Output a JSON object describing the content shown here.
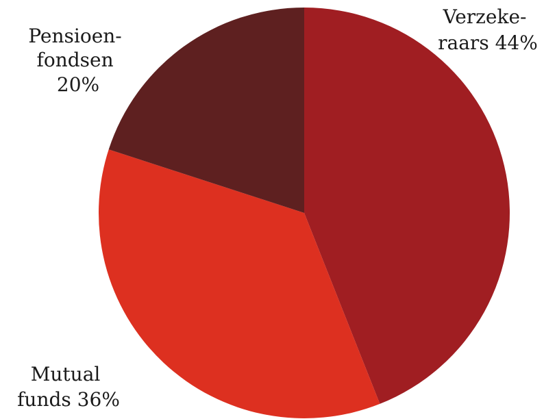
{
  "chart_data": {
    "type": "pie",
    "slices": [
      {
        "label_lines": [
          "Verzeke-",
          "raars 44%"
        ],
        "value": 44,
        "color": "#A01E22"
      },
      {
        "label_lines": [
          "Mutual",
          "funds 36%"
        ],
        "value": 36,
        "color": "#DD3020"
      },
      {
        "label_lines": [
          "Pensioen-",
          "fondsen",
          "20%"
        ],
        "value": 20,
        "color": "#5E2020"
      }
    ],
    "start": "12 o'clock",
    "direction": "clockwise"
  }
}
